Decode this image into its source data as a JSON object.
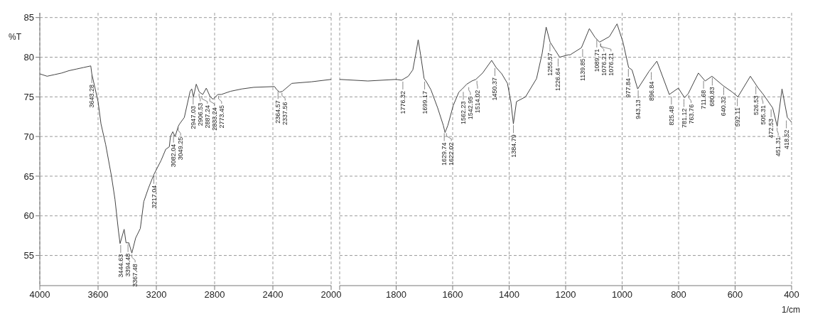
{
  "chart_data": [
    {
      "type": "line",
      "ylabel": "%T",
      "x": [
        4000,
        3950,
        3900,
        3850,
        3800,
        3750,
        3700,
        3650,
        3643,
        3600,
        3580,
        3548,
        3508,
        3484,
        3460,
        3449,
        3421,
        3408,
        3389,
        3368,
        3342,
        3310,
        3286,
        3254,
        3217,
        3167,
        3135,
        3111,
        3103,
        3087,
        3071,
        3049,
        3040,
        3008,
        2968,
        2957,
        2945,
        2926,
        2905,
        2881,
        2857,
        2830,
        2810,
        2778,
        2754,
        2691,
        2612,
        2532,
        2389,
        2373,
        2354,
        2334,
        2270,
        2135,
        2000
      ],
      "series": [
        {
          "color": "#444444",
          "values": [
            77.9,
            77.6,
            77.8,
            78.0,
            78.3,
            78.5,
            78.7,
            78.9,
            77.9,
            74.4,
            71.6,
            69.0,
            65.0,
            62.1,
            58.1,
            56.5,
            58.3,
            56.6,
            56.6,
            55.3,
            57.2,
            58.4,
            61.8,
            63.5,
            65.2,
            67.0,
            68.4,
            68.7,
            70.0,
            70.6,
            70.0,
            71.3,
            71.6,
            72.4,
            75.7,
            76.0,
            75.0,
            76.6,
            75.6,
            75.3,
            76.1,
            75.0,
            74.7,
            75.3,
            75.3,
            75.7,
            76.0,
            76.2,
            76.3,
            75.9,
            75.6,
            75.7,
            76.7,
            76.9,
            77.2
          ]
        }
      ],
      "xlim": [
        4000,
        2000
      ],
      "xticks": [
        4000,
        3600,
        3200,
        2800,
        2400,
        2000
      ],
      "ylim": [
        51.2,
        85.6
      ],
      "yticks": [
        55,
        60,
        65,
        70,
        75,
        80,
        85
      ],
      "grid": true,
      "marker": "none",
      "annotations": [
        {
          "text": "3643.28",
          "x": 3643.28,
          "y": 77.9
        },
        {
          "text": "3444.63",
          "x": 3444.63,
          "y": 56.5
        },
        {
          "text": "3394.48",
          "x": 3394.48,
          "y": 56.6
        },
        {
          "text": "3367.48",
          "x": 3367.48,
          "y": 55.3
        },
        {
          "text": "3217.04",
          "x": 3217.04,
          "y": 65.2
        },
        {
          "text": "3082.04",
          "x": 3082.04,
          "y": 70.4
        },
        {
          "text": "3049.25",
          "x": 3049.25,
          "y": 71.3
        },
        {
          "text": "2947.03",
          "x": 2947.03,
          "y": 75.2
        },
        {
          "text": "2906.53",
          "x": 2906.53,
          "y": 75.6
        },
        {
          "text": "2887.24",
          "x": 2887.24,
          "y": 75.3
        },
        {
          "text": "2833.24",
          "x": 2833.24,
          "y": 75.0
        },
        {
          "text": "2773.45",
          "x": 2773.45,
          "y": 75.3
        },
        {
          "text": "2364.57",
          "x": 2364.57,
          "y": 75.9
        },
        {
          "text": "2337.56",
          "x": 2337.56,
          "y": 75.7
        }
      ]
    },
    {
      "type": "line",
      "xlabel": "1/cm",
      "tick_labels": "x",
      "x": [
        2000,
        1900,
        1800,
        1781,
        1757,
        1741,
        1729,
        1722,
        1713,
        1701,
        1693,
        1677,
        1653,
        1633,
        1627,
        1617,
        1598,
        1578,
        1566,
        1550,
        1532,
        1518,
        1494,
        1462,
        1446,
        1426,
        1406,
        1394,
        1385,
        1374,
        1342,
        1303,
        1283,
        1269,
        1255,
        1239,
        1221,
        1191,
        1184,
        1144,
        1116,
        1096,
        1080,
        1045,
        1018,
        997,
        977,
        965,
        945,
        905,
        877,
        833,
        801,
        779,
        766,
        730,
        706,
        682,
        642,
        610,
        590,
        546,
        518,
        500,
        467,
        451,
        434,
        415,
        400
      ],
      "series": [
        {
          "color": "#444444",
          "values": [
            77.2,
            77.0,
            77.2,
            77.1,
            77.6,
            78.4,
            80.7,
            82.2,
            80.2,
            77.3,
            76.9,
            75.9,
            73.6,
            71.4,
            70.5,
            71.4,
            73.9,
            75.6,
            76.0,
            76.6,
            77.0,
            77.2,
            78.0,
            79.6,
            78.7,
            77.9,
            76.7,
            74.4,
            71.6,
            74.4,
            75.0,
            77.3,
            80.5,
            83.8,
            81.9,
            81.0,
            80.0,
            80.3,
            80.3,
            81.2,
            83.6,
            82.5,
            81.9,
            82.6,
            84.2,
            81.9,
            78.7,
            78.4,
            76.0,
            78.2,
            79.5,
            75.3,
            76.1,
            74.9,
            75.4,
            78.0,
            77.0,
            77.6,
            76.4,
            75.6,
            75.0,
            77.6,
            76.1,
            75.3,
            73.6,
            71.3,
            76.0,
            72.4,
            71.8
          ]
        }
      ],
      "xlim": [
        2000,
        400
      ],
      "xticks": [
        {
          "value": 2000,
          "label": null
        },
        1800,
        1600,
        1400,
        1200,
        1000,
        800,
        600,
        400
      ],
      "ylim": [
        51.2,
        85.6
      ],
      "yticks": [
        55,
        60,
        65,
        70,
        75,
        80,
        85
      ],
      "grid": true,
      "marker": "none",
      "annotations": [
        {
          "text": "1776.32",
          "x": 1776.32,
          "y": 77.1
        },
        {
          "text": "1699.17",
          "x": 1699.17,
          "y": 77.1
        },
        {
          "text": "1629.74",
          "x": 1629.74,
          "y": 70.6
        },
        {
          "text": "1622.02",
          "x": 1622.02,
          "y": 70.6
        },
        {
          "text": "1562.23",
          "x": 1562.23,
          "y": 75.8
        },
        {
          "text": "1542.95",
          "x": 1542.95,
          "y": 76.4
        },
        {
          "text": "1514.02",
          "x": 1514.02,
          "y": 77.2
        },
        {
          "text": "1450.37",
          "x": 1450.37,
          "y": 78.8
        },
        {
          "text": "1384.79",
          "x": 1384.79,
          "y": 71.6
        },
        {
          "text": "1255.57",
          "x": 1255.57,
          "y": 81.9
        },
        {
          "text": "1226.64",
          "x": 1226.64,
          "y": 80.0
        },
        {
          "text": "1139.85",
          "x": 1139.85,
          "y": 81.2
        },
        {
          "text": "1089.71",
          "x": 1089.71,
          "y": 82.4
        },
        {
          "text": "1076.21",
          "x": 1076.21,
          "y": 81.9
        },
        {
          "text": "1076.21",
          "x": 1076.21,
          "y": 81.9
        },
        {
          "text": "977.84",
          "x": 977.84,
          "y": 78.7
        },
        {
          "text": "943.13",
          "x": 943.13,
          "y": 76.0
        },
        {
          "text": "896.84",
          "x": 896.84,
          "y": 78.3
        },
        {
          "text": "825.48",
          "x": 825.48,
          "y": 75.2
        },
        {
          "text": "781.12",
          "x": 781.12,
          "y": 74.9
        },
        {
          "text": "763.76",
          "x": 763.76,
          "y": 75.4
        },
        {
          "text": "711.68",
          "x": 711.68,
          "y": 77.2
        },
        {
          "text": "680.83",
          "x": 680.83,
          "y": 77.6
        },
        {
          "text": "640.32",
          "x": 640.32,
          "y": 76.4
        },
        {
          "text": "592.11",
          "x": 592.11,
          "y": 75.0
        },
        {
          "text": "526.53",
          "x": 526.53,
          "y": 76.5
        },
        {
          "text": "505.31",
          "x": 505.31,
          "y": 75.3
        },
        {
          "text": "472.53",
          "x": 472.53,
          "y": 73.6
        },
        {
          "text": "451.31",
          "x": 451.31,
          "y": 71.3
        },
        {
          "text": "418.52",
          "x": 418.52,
          "y": 72.2
        }
      ]
    }
  ]
}
